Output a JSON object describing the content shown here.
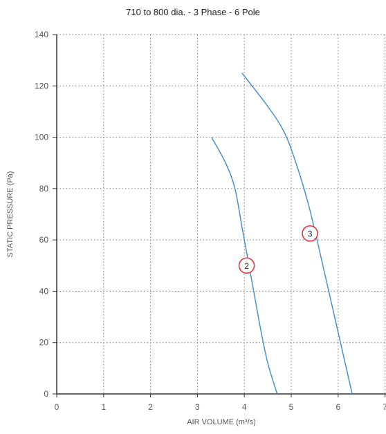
{
  "chart_data": {
    "type": "line",
    "title": "710 to 800 dia. - 3 Phase - 6 Pole",
    "xlabel": "AIR VOLUME (m³/s)",
    "ylabel": "STATIC PRESSURE (Pa)",
    "xlim": [
      0,
      7
    ],
    "ylim": [
      0,
      140
    ],
    "x_ticks": [
      "0",
      "1",
      "2",
      "3",
      "4",
      "5",
      "6",
      "7"
    ],
    "y_ticks": [
      "0",
      "20",
      "40",
      "60",
      "80",
      "100",
      "120",
      "140"
    ],
    "grid": "dotted",
    "series": [
      {
        "name": "2",
        "color": "#4a90c8",
        "points": [
          {
            "x": 3.3,
            "y": 100
          },
          {
            "x": 3.6,
            "y": 90
          },
          {
            "x": 3.8,
            "y": 80
          },
          {
            "x": 3.95,
            "y": 65
          },
          {
            "x": 4.05,
            "y": 55
          },
          {
            "x": 4.2,
            "y": 40
          },
          {
            "x": 4.35,
            "y": 25
          },
          {
            "x": 4.5,
            "y": 12
          },
          {
            "x": 4.7,
            "y": 0
          }
        ],
        "marker": {
          "x": 4.05,
          "y": 50
        }
      },
      {
        "name": "3",
        "color": "#4a90c8",
        "points": [
          {
            "x": 3.95,
            "y": 125
          },
          {
            "x": 4.5,
            "y": 112
          },
          {
            "x": 4.85,
            "y": 102
          },
          {
            "x": 5.1,
            "y": 90
          },
          {
            "x": 5.35,
            "y": 75
          },
          {
            "x": 5.55,
            "y": 60
          },
          {
            "x": 5.8,
            "y": 40
          },
          {
            "x": 6.05,
            "y": 20
          },
          {
            "x": 6.3,
            "y": 0
          }
        ],
        "marker": {
          "x": 5.4,
          "y": 62.5
        }
      }
    ]
  }
}
